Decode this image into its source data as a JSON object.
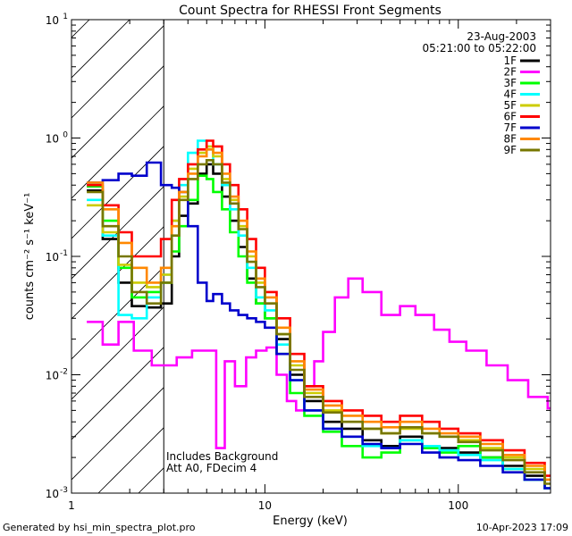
{
  "chart_data": {
    "type": "line",
    "title": "Count Spectra for RHESSI Front Segments",
    "xlabel": "Energy (keV)",
    "ylabel": "counts cm⁻² s⁻¹ keV⁻¹",
    "xscale": "log",
    "yscale": "log",
    "xlim": [
      1,
      300
    ],
    "ylim": [
      0.001,
      10
    ],
    "x_ticks": [
      {
        "value": 1,
        "label": "1"
      },
      {
        "value": 10,
        "label": "10"
      },
      {
        "value": 100,
        "label": "100"
      }
    ],
    "y_ticks": [
      {
        "value": 0.001,
        "base": "10",
        "exp": "-3"
      },
      {
        "value": 0.01,
        "base": "10",
        "exp": "-2"
      },
      {
        "value": 0.1,
        "base": "10",
        "exp": "-1"
      },
      {
        "value": 1,
        "base": "10",
        "exp": "0"
      },
      {
        "value": 10,
        "base": "10",
        "exp": "1"
      }
    ],
    "hatched_region": {
      "x_from": 1,
      "x_to": 3
    },
    "date": "23-Aug-2003",
    "time_range": "05:21:00 to 05:22:00",
    "annotation_lines": [
      "Includes Background",
      "Att A0, FDecim 4"
    ],
    "legend_position": "top-right",
    "series": [
      {
        "name": "1F",
        "color": "#000000",
        "points": [
          [
            1.2,
            0.36
          ],
          [
            1.45,
            0.14
          ],
          [
            1.75,
            0.06
          ],
          [
            2.05,
            0.038
          ],
          [
            2.45,
            0.037
          ],
          [
            2.9,
            0.04
          ],
          [
            3.3,
            0.1
          ],
          [
            3.6,
            0.22
          ],
          [
            4.0,
            0.28
          ],
          [
            4.5,
            0.5
          ],
          [
            5.0,
            0.6
          ],
          [
            5.4,
            0.5
          ],
          [
            6.0,
            0.32
          ],
          [
            6.6,
            0.2
          ],
          [
            7.3,
            0.12
          ],
          [
            8.1,
            0.065
          ],
          [
            9.0,
            0.04
          ],
          [
            10.0,
            0.03
          ],
          [
            11.5,
            0.02
          ],
          [
            13.5,
            0.01
          ],
          [
            16,
            0.006
          ],
          [
            20,
            0.004
          ],
          [
            25,
            0.0035
          ],
          [
            32,
            0.0028
          ],
          [
            40,
            0.0025
          ],
          [
            50,
            0.003
          ],
          [
            65,
            0.0025
          ],
          [
            80,
            0.0024
          ],
          [
            100,
            0.0022
          ],
          [
            130,
            0.002
          ],
          [
            170,
            0.0017
          ],
          [
            220,
            0.0014
          ],
          [
            280,
            0.0011
          ]
        ]
      },
      {
        "name": "2F",
        "color": "#ff00ff",
        "points": [
          [
            1.2,
            0.028
          ],
          [
            1.45,
            0.018
          ],
          [
            1.75,
            0.028
          ],
          [
            2.1,
            0.016
          ],
          [
            2.6,
            0.012
          ],
          [
            3.0,
            0.012
          ],
          [
            3.5,
            0.014
          ],
          [
            4.2,
            0.016
          ],
          [
            5.0,
            0.016
          ],
          [
            5.6,
            0.0024
          ],
          [
            6.2,
            0.013
          ],
          [
            7.0,
            0.008
          ],
          [
            8.0,
            0.014
          ],
          [
            9.0,
            0.016
          ],
          [
            10.2,
            0.017
          ],
          [
            11.5,
            0.01
          ],
          [
            13,
            0.006
          ],
          [
            14.5,
            0.005
          ],
          [
            16,
            0.008
          ],
          [
            18,
            0.013
          ],
          [
            20,
            0.023
          ],
          [
            23,
            0.045
          ],
          [
            27,
            0.065
          ],
          [
            32,
            0.05
          ],
          [
            40,
            0.032
          ],
          [
            50,
            0.038
          ],
          [
            60,
            0.032
          ],
          [
            75,
            0.024
          ],
          [
            90,
            0.019
          ],
          [
            110,
            0.016
          ],
          [
            140,
            0.012
          ],
          [
            180,
            0.009
          ],
          [
            230,
            0.0065
          ],
          [
            290,
            0.0052
          ]
        ]
      },
      {
        "name": "3F",
        "color": "#00ff00",
        "points": [
          [
            1.2,
            0.39
          ],
          [
            1.45,
            0.2
          ],
          [
            1.75,
            0.08
          ],
          [
            2.05,
            0.045
          ],
          [
            2.45,
            0.05
          ],
          [
            2.9,
            0.06
          ],
          [
            3.3,
            0.11
          ],
          [
            3.6,
            0.18
          ],
          [
            4.0,
            0.3
          ],
          [
            4.5,
            0.48
          ],
          [
            5.0,
            0.45
          ],
          [
            5.4,
            0.35
          ],
          [
            6.0,
            0.25
          ],
          [
            6.6,
            0.16
          ],
          [
            7.3,
            0.1
          ],
          [
            8.1,
            0.06
          ],
          [
            9.0,
            0.04
          ],
          [
            10.0,
            0.03
          ],
          [
            11.5,
            0.015
          ],
          [
            13.5,
            0.007
          ],
          [
            16,
            0.0045
          ],
          [
            20,
            0.0033
          ],
          [
            25,
            0.0025
          ],
          [
            32,
            0.002
          ],
          [
            40,
            0.0022
          ],
          [
            50,
            0.0028
          ],
          [
            65,
            0.0024
          ],
          [
            80,
            0.0022
          ],
          [
            100,
            0.0025
          ],
          [
            130,
            0.002
          ],
          [
            170,
            0.0016
          ],
          [
            220,
            0.0013
          ],
          [
            280,
            0.0011
          ]
        ]
      },
      {
        "name": "4F",
        "color": "#00ffff",
        "points": [
          [
            1.2,
            0.3
          ],
          [
            1.45,
            0.15
          ],
          [
            1.75,
            0.032
          ],
          [
            2.05,
            0.03
          ],
          [
            2.45,
            0.045
          ],
          [
            2.9,
            0.07
          ],
          [
            3.3,
            0.2
          ],
          [
            3.6,
            0.4
          ],
          [
            4.0,
            0.75
          ],
          [
            4.5,
            0.95
          ],
          [
            5.0,
            0.8
          ],
          [
            5.4,
            0.6
          ],
          [
            6.0,
            0.4
          ],
          [
            6.6,
            0.25
          ],
          [
            7.3,
            0.15
          ],
          [
            8.1,
            0.08
          ],
          [
            9.0,
            0.045
          ],
          [
            10.0,
            0.035
          ],
          [
            11.5,
            0.018
          ],
          [
            13.5,
            0.009
          ],
          [
            16,
            0.005
          ],
          [
            20,
            0.0035
          ],
          [
            25,
            0.003
          ],
          [
            32,
            0.0025
          ],
          [
            40,
            0.0024
          ],
          [
            50,
            0.0028
          ],
          [
            65,
            0.0025
          ],
          [
            80,
            0.0023
          ],
          [
            100,
            0.0021
          ],
          [
            130,
            0.0019
          ],
          [
            170,
            0.0016
          ],
          [
            220,
            0.0013
          ],
          [
            280,
            0.0011
          ]
        ]
      },
      {
        "name": "5F",
        "color": "#cccc00",
        "points": [
          [
            1.2,
            0.27
          ],
          [
            1.45,
            0.16
          ],
          [
            1.75,
            0.085
          ],
          [
            2.05,
            0.06
          ],
          [
            2.45,
            0.055
          ],
          [
            2.9,
            0.07
          ],
          [
            3.3,
            0.2
          ],
          [
            3.6,
            0.32
          ],
          [
            4.0,
            0.55
          ],
          [
            4.5,
            0.75
          ],
          [
            5.0,
            0.85
          ],
          [
            5.4,
            0.7
          ],
          [
            6.0,
            0.45
          ],
          [
            6.6,
            0.3
          ],
          [
            7.3,
            0.18
          ],
          [
            8.1,
            0.1
          ],
          [
            9.0,
            0.06
          ],
          [
            10.0,
            0.04
          ],
          [
            11.5,
            0.022
          ],
          [
            13.5,
            0.012
          ],
          [
            16,
            0.007
          ],
          [
            20,
            0.005
          ],
          [
            25,
            0.004
          ],
          [
            32,
            0.0035
          ],
          [
            40,
            0.0032
          ],
          [
            50,
            0.0035
          ],
          [
            65,
            0.0032
          ],
          [
            80,
            0.003
          ],
          [
            100,
            0.0028
          ],
          [
            130,
            0.0024
          ],
          [
            170,
            0.002
          ],
          [
            220,
            0.0016
          ],
          [
            280,
            0.0013
          ]
        ]
      },
      {
        "name": "6F",
        "color": "#ff0000",
        "points": [
          [
            1.2,
            0.4
          ],
          [
            1.45,
            0.27
          ],
          [
            1.75,
            0.16
          ],
          [
            2.05,
            0.1
          ],
          [
            2.45,
            0.1
          ],
          [
            2.9,
            0.14
          ],
          [
            3.3,
            0.3
          ],
          [
            3.6,
            0.45
          ],
          [
            4.0,
            0.6
          ],
          [
            4.5,
            0.8
          ],
          [
            5.0,
            0.95
          ],
          [
            5.4,
            0.85
          ],
          [
            6.0,
            0.6
          ],
          [
            6.6,
            0.4
          ],
          [
            7.3,
            0.25
          ],
          [
            8.1,
            0.14
          ],
          [
            9.0,
            0.08
          ],
          [
            10.0,
            0.05
          ],
          [
            11.5,
            0.03
          ],
          [
            13.5,
            0.015
          ],
          [
            16,
            0.008
          ],
          [
            20,
            0.006
          ],
          [
            25,
            0.005
          ],
          [
            32,
            0.0045
          ],
          [
            40,
            0.004
          ],
          [
            50,
            0.0045
          ],
          [
            65,
            0.004
          ],
          [
            80,
            0.0035
          ],
          [
            100,
            0.0032
          ],
          [
            130,
            0.0028
          ],
          [
            170,
            0.0023
          ],
          [
            220,
            0.0018
          ],
          [
            280,
            0.0014
          ]
        ]
      },
      {
        "name": "7F",
        "color": "#0000cc",
        "points": [
          [
            1.2,
            0.42
          ],
          [
            1.45,
            0.44
          ],
          [
            1.75,
            0.5
          ],
          [
            2.05,
            0.48
          ],
          [
            2.45,
            0.62
          ],
          [
            2.9,
            0.4
          ],
          [
            3.3,
            0.38
          ],
          [
            3.6,
            0.35
          ],
          [
            4.0,
            0.18
          ],
          [
            4.5,
            0.06
          ],
          [
            5.0,
            0.042
          ],
          [
            5.4,
            0.048
          ],
          [
            6.0,
            0.04
          ],
          [
            6.6,
            0.035
          ],
          [
            7.3,
            0.032
          ],
          [
            8.1,
            0.03
          ],
          [
            9.0,
            0.028
          ],
          [
            10.0,
            0.025
          ],
          [
            11.5,
            0.015
          ],
          [
            13.5,
            0.009
          ],
          [
            16,
            0.005
          ],
          [
            20,
            0.0035
          ],
          [
            25,
            0.003
          ],
          [
            32,
            0.0026
          ],
          [
            40,
            0.0024
          ],
          [
            50,
            0.0026
          ],
          [
            65,
            0.0022
          ],
          [
            80,
            0.002
          ],
          [
            100,
            0.0019
          ],
          [
            130,
            0.0017
          ],
          [
            170,
            0.0015
          ],
          [
            220,
            0.0013
          ],
          [
            280,
            0.0011
          ]
        ]
      },
      {
        "name": "8F",
        "color": "#ff8800",
        "points": [
          [
            1.2,
            0.42
          ],
          [
            1.45,
            0.25
          ],
          [
            1.75,
            0.13
          ],
          [
            2.05,
            0.08
          ],
          [
            2.45,
            0.06
          ],
          [
            2.9,
            0.08
          ],
          [
            3.3,
            0.18
          ],
          [
            3.6,
            0.35
          ],
          [
            4.0,
            0.5
          ],
          [
            4.5,
            0.7
          ],
          [
            5.0,
            0.8
          ],
          [
            5.4,
            0.75
          ],
          [
            6.0,
            0.5
          ],
          [
            6.6,
            0.32
          ],
          [
            7.3,
            0.2
          ],
          [
            8.1,
            0.11
          ],
          [
            9.0,
            0.065
          ],
          [
            10.0,
            0.045
          ],
          [
            11.5,
            0.025
          ],
          [
            13.5,
            0.013
          ],
          [
            16,
            0.0075
          ],
          [
            20,
            0.0055
          ],
          [
            25,
            0.0045
          ],
          [
            32,
            0.004
          ],
          [
            40,
            0.0036
          ],
          [
            50,
            0.004
          ],
          [
            65,
            0.0035
          ],
          [
            80,
            0.0032
          ],
          [
            100,
            0.003
          ],
          [
            130,
            0.0026
          ],
          [
            170,
            0.0021
          ],
          [
            220,
            0.0017
          ],
          [
            280,
            0.0013
          ]
        ]
      },
      {
        "name": "9F",
        "color": "#777700",
        "points": [
          [
            1.2,
            0.35
          ],
          [
            1.45,
            0.18
          ],
          [
            1.75,
            0.1
          ],
          [
            2.05,
            0.05
          ],
          [
            2.45,
            0.04
          ],
          [
            2.9,
            0.06
          ],
          [
            3.3,
            0.15
          ],
          [
            3.6,
            0.3
          ],
          [
            4.0,
            0.45
          ],
          [
            4.5,
            0.6
          ],
          [
            5.0,
            0.65
          ],
          [
            5.4,
            0.6
          ],
          [
            6.0,
            0.42
          ],
          [
            6.6,
            0.28
          ],
          [
            7.3,
            0.17
          ],
          [
            8.1,
            0.09
          ],
          [
            9.0,
            0.055
          ],
          [
            10.0,
            0.04
          ],
          [
            11.5,
            0.022
          ],
          [
            13.5,
            0.011
          ],
          [
            16,
            0.0065
          ],
          [
            20,
            0.0048
          ],
          [
            25,
            0.004
          ],
          [
            32,
            0.0035
          ],
          [
            40,
            0.0032
          ],
          [
            50,
            0.0036
          ],
          [
            65,
            0.0032
          ],
          [
            80,
            0.003
          ],
          [
            100,
            0.0027
          ],
          [
            130,
            0.0023
          ],
          [
            170,
            0.0019
          ],
          [
            220,
            0.0015
          ],
          [
            280,
            0.0012
          ]
        ]
      }
    ]
  },
  "footer": {
    "generated_by": "Generated by hsi_min_spectra_plot.pro",
    "timestamp": "10-Apr-2023 17:09"
  }
}
